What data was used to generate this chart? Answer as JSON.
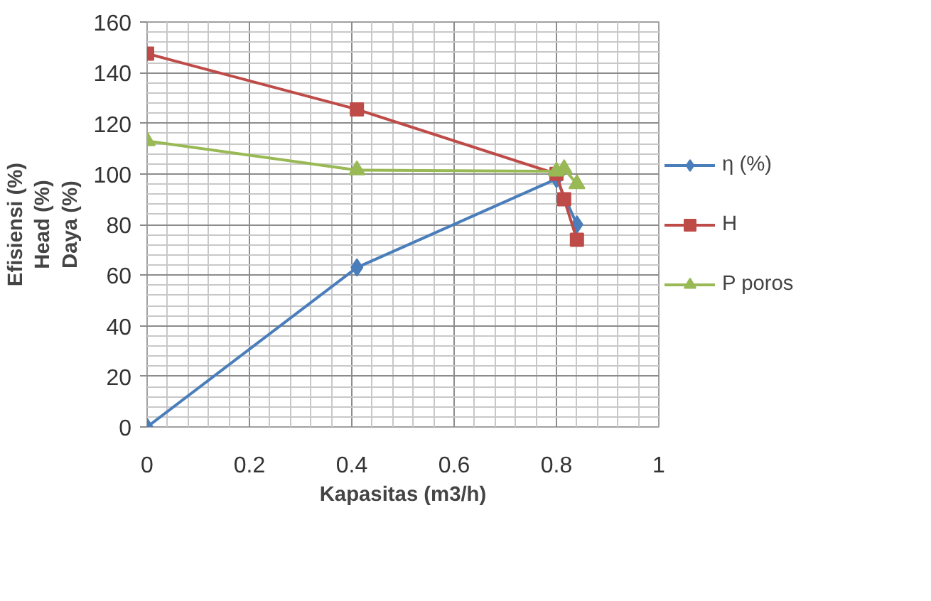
{
  "chart_data": {
    "type": "line",
    "xlabel": "Kapasitas (m3/h)",
    "ylabel": "Efisiensi (%)\nHead (%)\nDaya (%)",
    "xlim": [
      0,
      1
    ],
    "xticks": [
      0,
      0.2,
      0.4,
      0.6,
      0.8,
      1
    ],
    "ylim": [
      0,
      160
    ],
    "yticks": [
      0,
      20,
      40,
      60,
      80,
      100,
      120,
      140,
      160
    ],
    "grid": true,
    "legend": "right",
    "series": [
      {
        "name": "η (%)",
        "color": "#4a7ebb",
        "marker": "diamond",
        "x": [
          0,
          0.41,
          0.8,
          0.84
        ],
        "values": [
          0,
          63,
          98,
          80
        ]
      },
      {
        "name": "H",
        "color": "#be4b48",
        "marker": "square",
        "x": [
          0,
          0.41,
          0.8,
          0.815,
          0.84
        ],
        "values": [
          147.5,
          125.5,
          100,
          90,
          74
        ]
      },
      {
        "name": "P poros",
        "color": "#98b954",
        "marker": "triangle",
        "x": [
          0,
          0.41,
          0.8,
          0.815,
          0.84
        ],
        "values": [
          113,
          101.5,
          101,
          102,
          96
        ]
      }
    ]
  }
}
